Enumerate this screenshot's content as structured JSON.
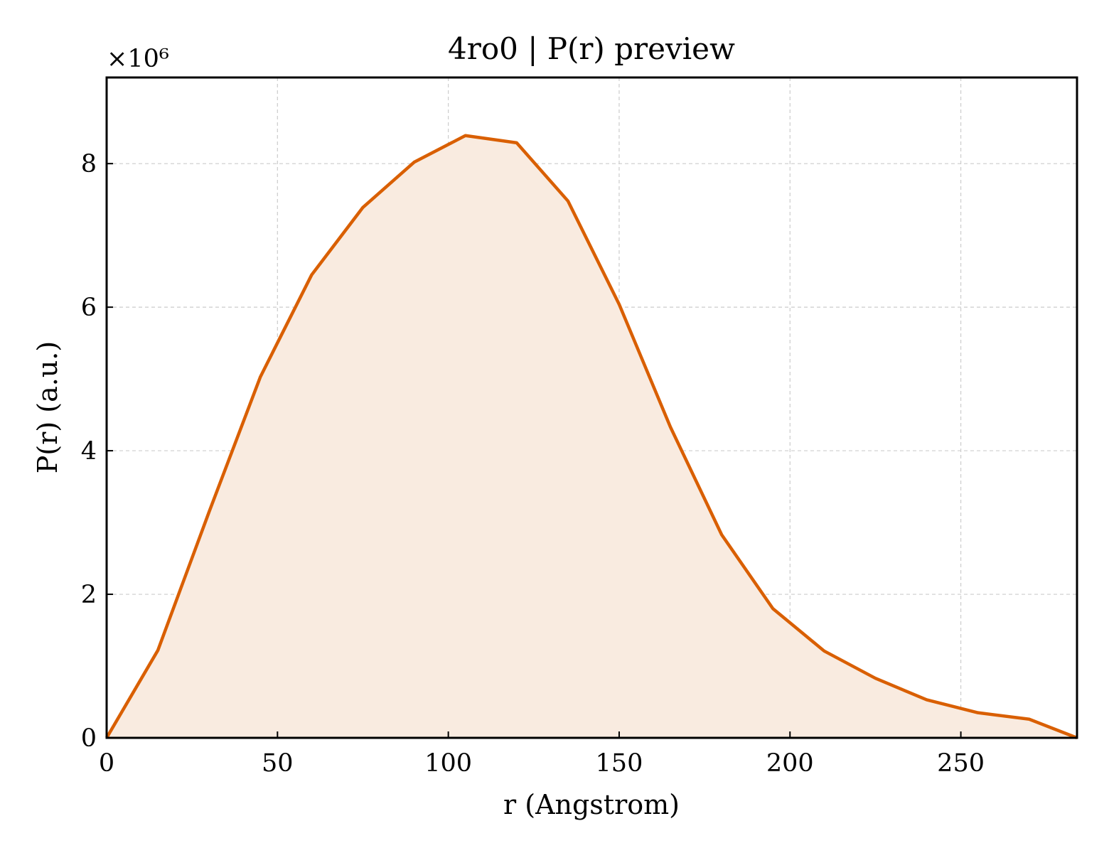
{
  "chart_data": {
    "type": "area",
    "title": "4ro0 | P(r) preview",
    "xlabel": "r (Angstrom)",
    "ylabel": "P(r) (a.u.)",
    "y_multiplier_label": "×10⁶",
    "y_scale_factor": 1000000,
    "xlim": [
      0,
      284
    ],
    "ylim": [
      0,
      9200000
    ],
    "x_ticks": [
      0,
      50,
      100,
      150,
      200,
      250
    ],
    "y_ticks": [
      0,
      2000000,
      4000000,
      6000000,
      8000000
    ],
    "y_tick_labels": [
      "0",
      "2",
      "4",
      "6",
      "8"
    ],
    "grid": true,
    "colors": {
      "line": "#d95f02",
      "fill": "#f9ebe0"
    },
    "series": [
      {
        "x": [
          0,
          15,
          30,
          45,
          60,
          75,
          90,
          105,
          120,
          135,
          150,
          165,
          180,
          195,
          210,
          225,
          240,
          255,
          270,
          284
        ],
        "y": [
          0,
          1220000,
          3150000,
          5030000,
          6450000,
          7390000,
          8020000,
          8390000,
          8290000,
          7480000,
          6040000,
          4330000,
          2830000,
          1800000,
          1210000,
          830000,
          530000,
          350000,
          260000,
          0
        ]
      }
    ]
  }
}
